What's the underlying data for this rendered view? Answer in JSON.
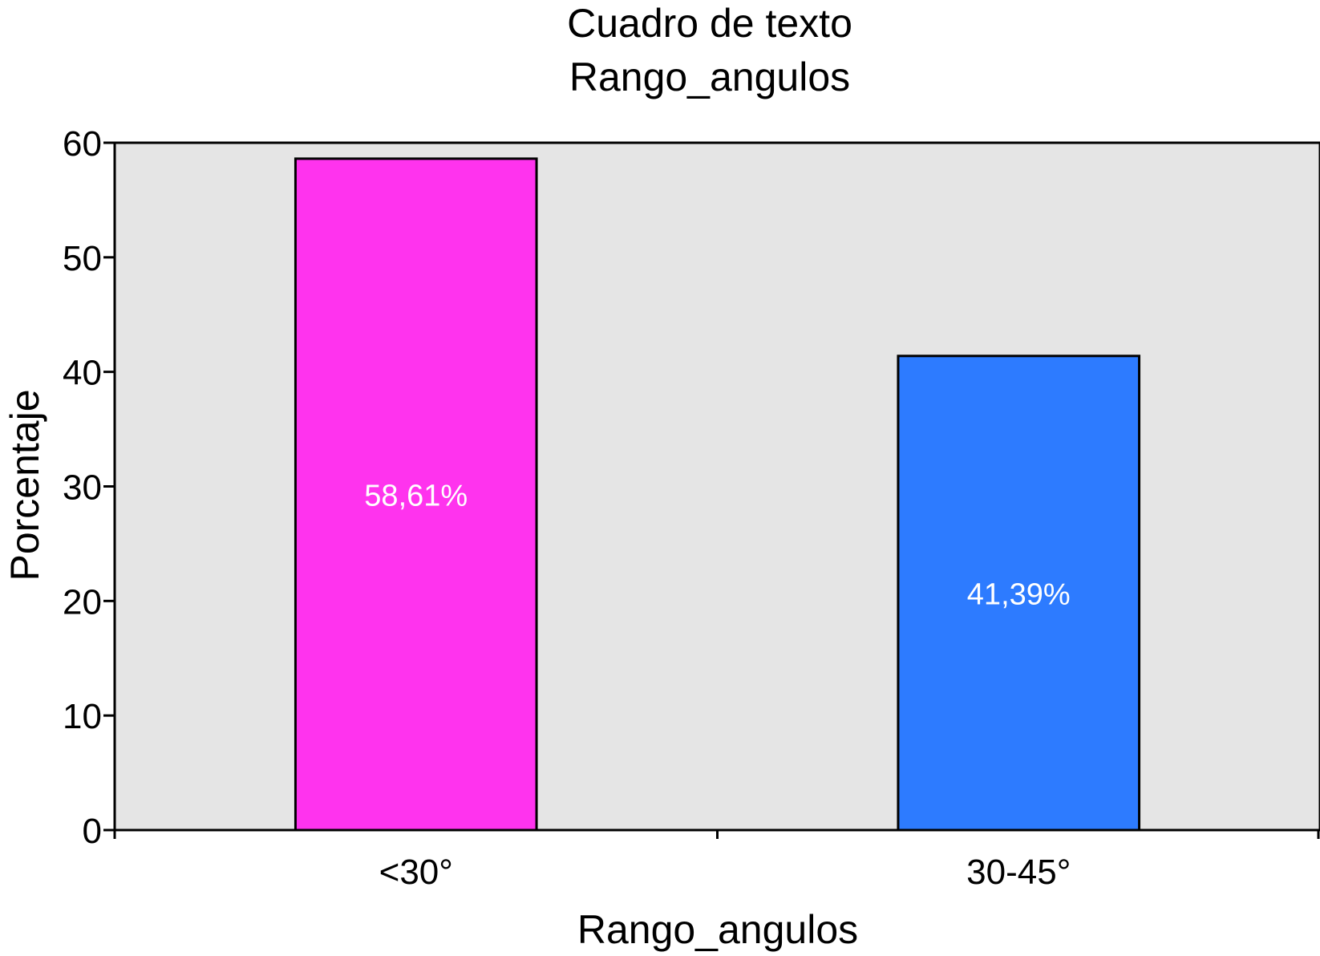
{
  "chart_data": {
    "type": "bar",
    "title": "Cuadro de texto",
    "subtitle": "Rango_angulos",
    "xlabel": "Rango_angulos",
    "ylabel": "Porcentaje",
    "categories": [
      "<30°",
      "30-45°"
    ],
    "values": [
      58.61,
      41.39
    ],
    "data_labels": [
      "58,61%",
      "41,39%"
    ],
    "bar_colors": [
      "#ff33ee",
      "#2d7bff"
    ],
    "plot_background": "#e5e5e5",
    "data_label_color": "#ffffff",
    "ylim": [
      0,
      60
    ],
    "yticks": [
      0,
      10,
      20,
      30,
      40,
      50,
      60
    ],
    "grid": false,
    "legend": "none"
  }
}
